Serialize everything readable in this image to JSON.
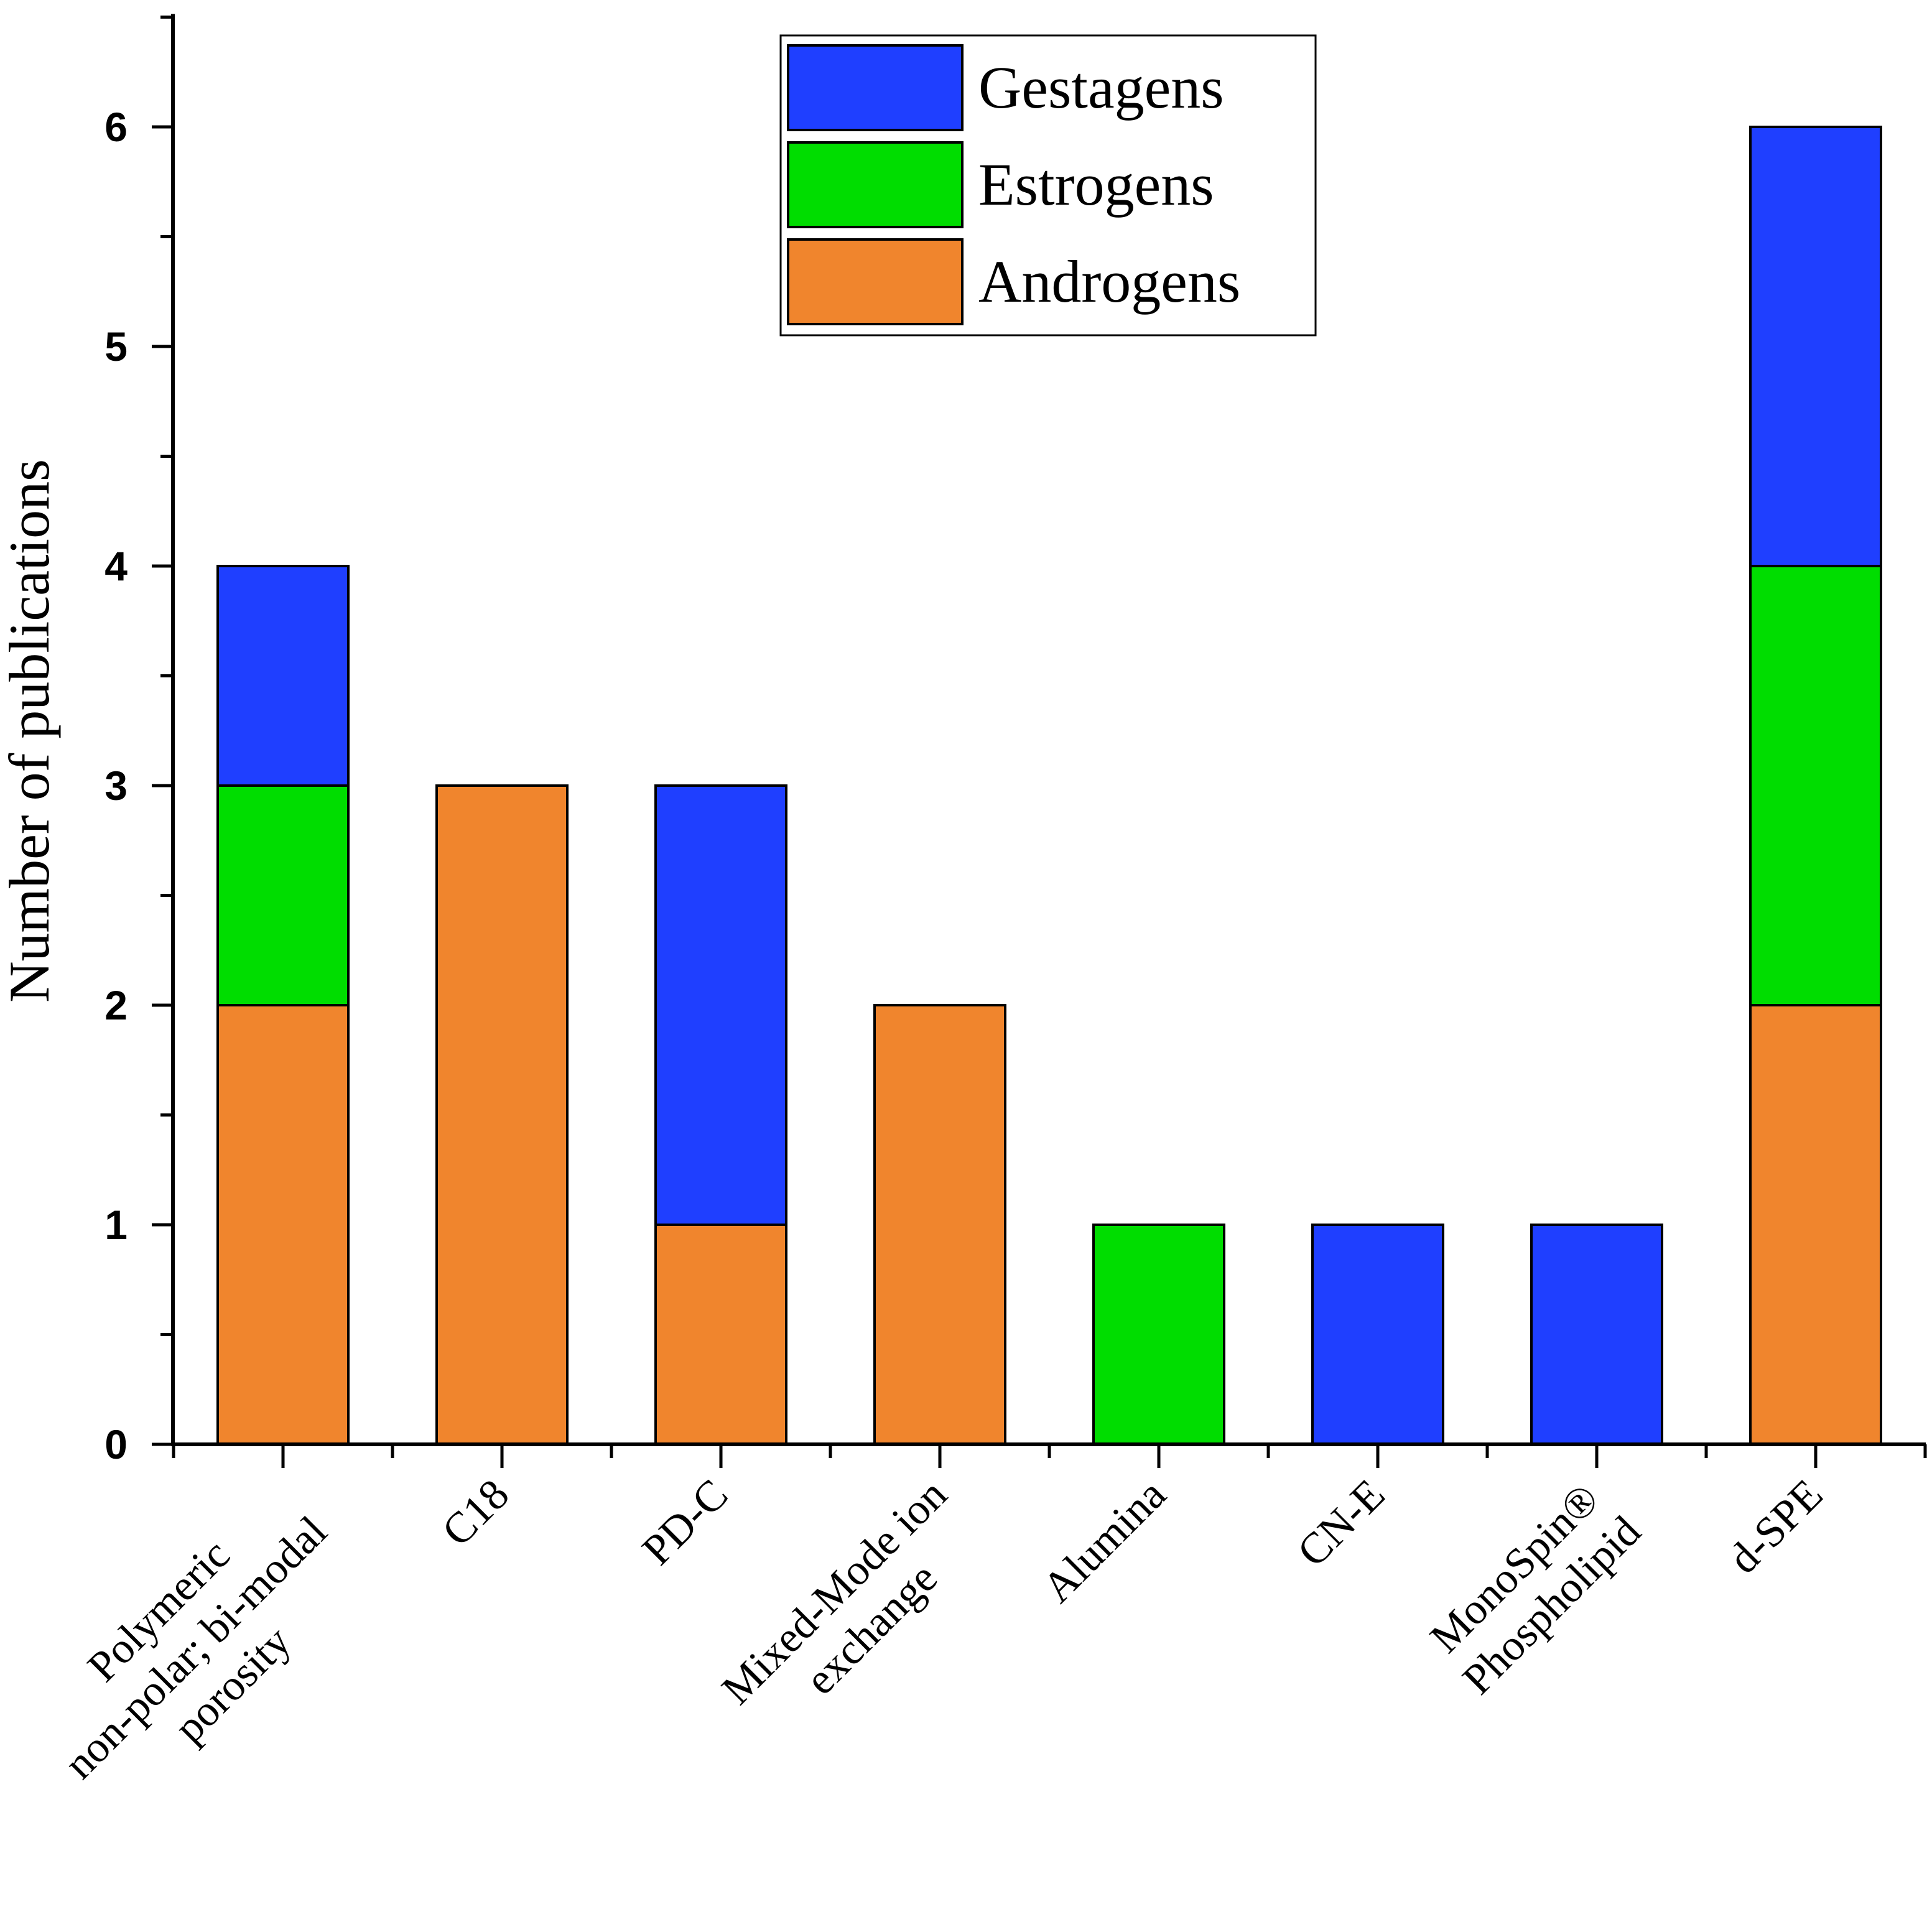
{
  "chart_data": {
    "type": "bar",
    "stacked": true,
    "title": "",
    "xlabel": "",
    "ylabel": "Number of publications",
    "ylim": [
      0,
      6.5
    ],
    "yticks": [
      0,
      1,
      2,
      3,
      4,
      5,
      6
    ],
    "categories": [
      [
        "Polymeric",
        "non-polar; bi-modal",
        "porosity"
      ],
      [
        "C18"
      ],
      [
        "PD-C"
      ],
      [
        "Mixed-Mode ion",
        "exchange"
      ],
      [
        "Alumina"
      ],
      [
        "CN-E"
      ],
      [
        "MonoSpin®",
        "Phospholipid"
      ],
      [
        "d-SPE"
      ]
    ],
    "series": [
      {
        "name": "Androgens",
        "color": "#f0852d",
        "values": [
          2,
          3,
          1,
          2,
          0,
          0,
          0,
          2
        ]
      },
      {
        "name": "Estrogens",
        "color": "#00dd00",
        "values": [
          1,
          0,
          0,
          0,
          1,
          0,
          0,
          2
        ]
      },
      {
        "name": "Gestagens",
        "color": "#1f3fff",
        "values": [
          1,
          0,
          2,
          0,
          0,
          1,
          1,
          2
        ]
      }
    ],
    "legend": {
      "position": "top-center",
      "order": [
        "Gestagens",
        "Estrogens",
        "Androgens"
      ]
    }
  }
}
